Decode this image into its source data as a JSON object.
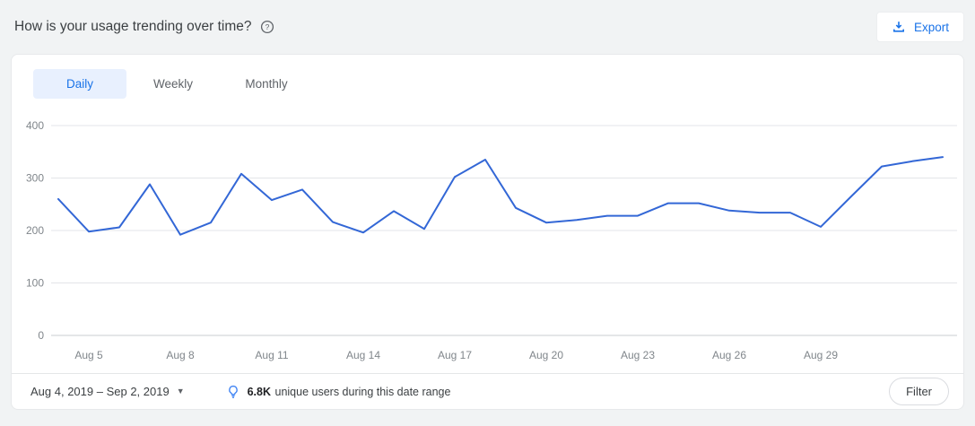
{
  "header": {
    "title": "How is your usage trending over time?",
    "export_label": "Export"
  },
  "tabs": [
    {
      "label": "Daily",
      "active": true
    },
    {
      "label": "Weekly",
      "active": false
    },
    {
      "label": "Monthly",
      "active": false
    }
  ],
  "footer": {
    "date_range": "Aug 4, 2019 – Sep 2, 2019",
    "insight_value": "6.8K",
    "insight_text": "unique users during this date range",
    "filter_label": "Filter"
  },
  "colors": {
    "accent": "#1a73e8",
    "line": "#3367d6",
    "grid": "#e3e5e8",
    "grid_strong": "#c9ccd1",
    "axis_text": "#80868b",
    "bulb": "#4285f4"
  },
  "chart_data": {
    "type": "line",
    "title": "",
    "xlabel": "",
    "ylabel": "",
    "x": [
      "Aug 4",
      "Aug 5",
      "Aug 6",
      "Aug 7",
      "Aug 8",
      "Aug 9",
      "Aug 10",
      "Aug 11",
      "Aug 12",
      "Aug 13",
      "Aug 14",
      "Aug 15",
      "Aug 16",
      "Aug 17",
      "Aug 18",
      "Aug 19",
      "Aug 20",
      "Aug 21",
      "Aug 22",
      "Aug 23",
      "Aug 24",
      "Aug 25",
      "Aug 26",
      "Aug 27",
      "Aug 28",
      "Aug 29",
      "Aug 30",
      "Aug 31",
      "Sep 1",
      "Sep 2"
    ],
    "values": [
      260,
      198,
      206,
      288,
      192,
      215,
      308,
      258,
      278,
      216,
      196,
      237,
      203,
      302,
      335,
      243,
      215,
      220,
      228,
      228,
      252,
      252,
      238,
      234,
      234,
      207,
      265,
      322,
      332,
      340
    ],
    "xtick_labels": [
      "Aug 5",
      "Aug 8",
      "Aug 11",
      "Aug 14",
      "Aug 17",
      "Aug 20",
      "Aug 23",
      "Aug 26",
      "Aug 29"
    ],
    "yticks": [
      0,
      100,
      200,
      300,
      400
    ],
    "ylim": [
      0,
      400
    ],
    "grid": true,
    "legend": false
  }
}
